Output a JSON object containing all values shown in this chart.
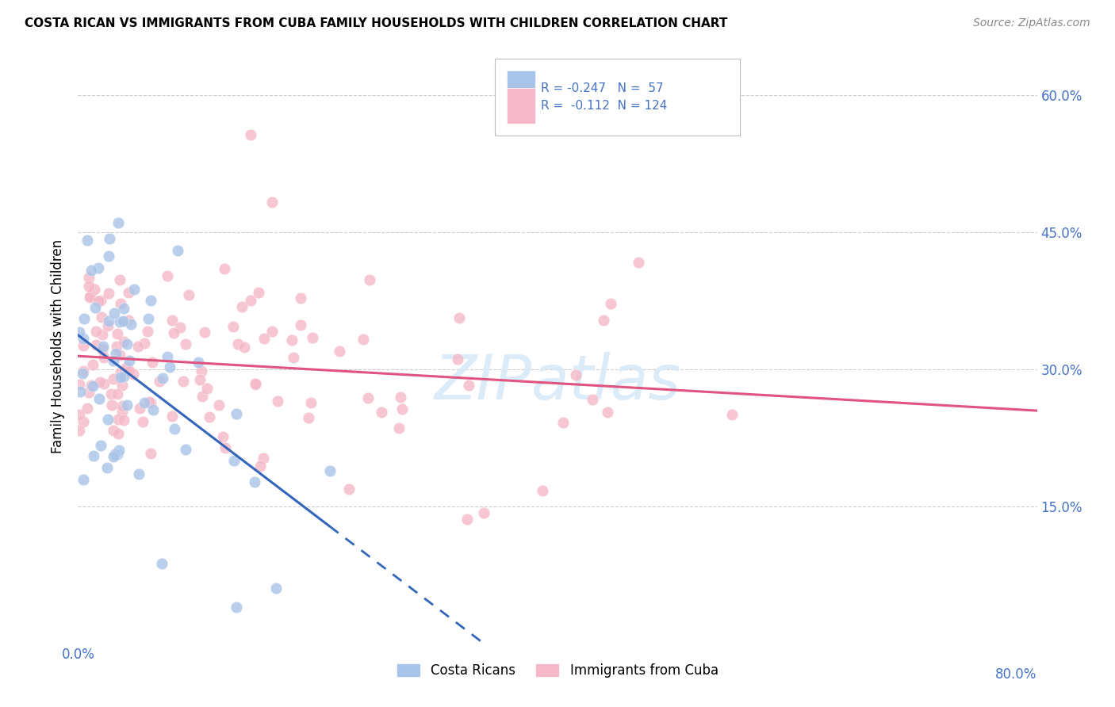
{
  "title": "COSTA RICAN VS IMMIGRANTS FROM CUBA FAMILY HOUSEHOLDS WITH CHILDREN CORRELATION CHART",
  "source": "Source: ZipAtlas.com",
  "ylabel": "Family Households with Children",
  "r_blue": -0.247,
  "n_blue": 57,
  "r_pink": -0.112,
  "n_pink": 124,
  "legend_labels": [
    "Costa Ricans",
    "Immigrants from Cuba"
  ],
  "blue_color": "#a8c4e8",
  "pink_color": "#f4b8c8",
  "blue_line_color": "#3366bb",
  "pink_line_color": "#e05580",
  "xlim": [
    0.0,
    0.8
  ],
  "ylim": [
    0.0,
    0.65
  ],
  "yticks": [
    0.0,
    0.15,
    0.3,
    0.45,
    0.6
  ],
  "xticks": [
    0.0,
    0.1,
    0.2,
    0.3,
    0.4,
    0.5,
    0.6,
    0.7,
    0.8
  ],
  "tick_color": "#4472c4",
  "grid_color": "#cccccc",
  "watermark_color": "#d8eaf8",
  "title_fontsize": 11,
  "axis_fontsize": 12
}
